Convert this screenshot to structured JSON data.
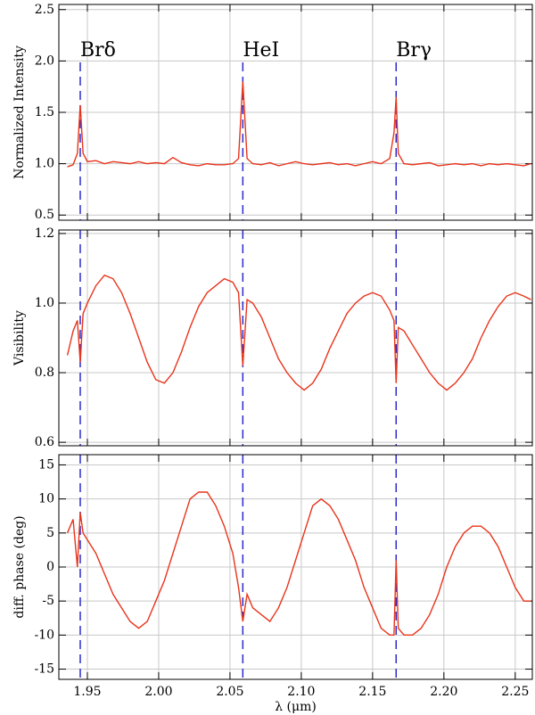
{
  "chart_data": [
    {
      "type": "line",
      "ylabel": "Normalized Intensity",
      "xlim": [
        1.93,
        2.262
      ],
      "ylim": [
        0.45,
        2.55
      ],
      "yticks": [
        {
          "value": 0.5,
          "label": "0.5"
        },
        {
          "value": 1,
          "label": "1.0"
        },
        {
          "value": 1.5,
          "label": "1.5"
        },
        {
          "value": 2,
          "label": "2.0"
        },
        {
          "value": 2.5,
          "label": "2.5"
        }
      ],
      "grid": true,
      "annotations": [
        {
          "text": "Brδ",
          "x": 1.945
        },
        {
          "text": "HeI",
          "x": 2.059
        },
        {
          "text": "Brγ",
          "x": 2.1665
        }
      ],
      "annotation_color": "#2a2acc",
      "x": [
        1.936,
        1.94,
        1.943,
        1.945,
        1.947,
        1.95,
        1.956,
        1.962,
        1.968,
        1.974,
        1.98,
        1.986,
        1.992,
        1.998,
        2.004,
        2.01,
        2.016,
        2.022,
        2.028,
        2.034,
        2.04,
        2.046,
        2.052,
        2.056,
        2.059,
        2.062,
        2.066,
        2.072,
        2.078,
        2.084,
        2.09,
        2.096,
        2.102,
        2.108,
        2.114,
        2.12,
        2.126,
        2.132,
        2.138,
        2.144,
        2.15,
        2.156,
        2.162,
        2.165,
        2.1665,
        2.168,
        2.172,
        2.178,
        2.184,
        2.19,
        2.196,
        2.202,
        2.208,
        2.214,
        2.22,
        2.226,
        2.232,
        2.238,
        2.244,
        2.25,
        2.256,
        2.261
      ],
      "series": [
        {
          "color": "#e8341c",
          "values": [
            0.97,
            0.99,
            1.1,
            1.57,
            1.1,
            1.02,
            1.03,
            1.0,
            1.02,
            1.01,
            1.0,
            1.02,
            1.0,
            1.01,
            1.0,
            1.06,
            1.01,
            0.99,
            0.98,
            1.0,
            0.99,
            0.99,
            1.0,
            1.05,
            1.8,
            1.05,
            1.0,
            0.99,
            1.01,
            0.98,
            1.0,
            1.02,
            1.0,
            0.99,
            1.0,
            1.01,
            0.99,
            1.0,
            0.98,
            1.0,
            1.02,
            1.0,
            1.05,
            1.3,
            1.65,
            1.1,
            1.0,
            0.99,
            1.0,
            1.01,
            0.98,
            0.99,
            1.0,
            0.99,
            1.0,
            0.98,
            1.0,
            0.99,
            1.0,
            0.99,
            0.98,
            1.0
          ]
        }
      ]
    },
    {
      "type": "line",
      "ylabel": "Visibility",
      "xlim": [
        1.93,
        2.262
      ],
      "ylim": [
        0.59,
        1.21
      ],
      "yticks": [
        {
          "value": 0.6,
          "label": "0.6"
        },
        {
          "value": 0.8,
          "label": "0.8"
        },
        {
          "value": 1,
          "label": "1.0"
        },
        {
          "value": 1.2,
          "label": "1.2"
        }
      ],
      "grid": true,
      "x": [
        1.936,
        1.94,
        1.943,
        1.945,
        1.947,
        1.95,
        1.956,
        1.962,
        1.968,
        1.974,
        1.98,
        1.986,
        1.992,
        1.998,
        2.004,
        2.01,
        2.016,
        2.022,
        2.028,
        2.034,
        2.04,
        2.046,
        2.052,
        2.056,
        2.059,
        2.062,
        2.066,
        2.072,
        2.078,
        2.084,
        2.09,
        2.096,
        2.102,
        2.108,
        2.114,
        2.12,
        2.126,
        2.132,
        2.138,
        2.144,
        2.15,
        2.156,
        2.162,
        2.165,
        2.1665,
        2.168,
        2.172,
        2.178,
        2.184,
        2.19,
        2.196,
        2.202,
        2.208,
        2.214,
        2.22,
        2.226,
        2.232,
        2.238,
        2.244,
        2.25,
        2.256,
        2.261
      ],
      "series": [
        {
          "color": "#e8341c",
          "values": [
            0.85,
            0.92,
            0.95,
            0.83,
            0.97,
            1.0,
            1.05,
            1.08,
            1.07,
            1.03,
            0.97,
            0.9,
            0.83,
            0.78,
            0.77,
            0.8,
            0.86,
            0.93,
            0.99,
            1.03,
            1.05,
            1.07,
            1.06,
            1.03,
            0.82,
            1.01,
            1.0,
            0.96,
            0.9,
            0.84,
            0.8,
            0.77,
            0.75,
            0.77,
            0.81,
            0.87,
            0.92,
            0.97,
            1.0,
            1.02,
            1.03,
            1.02,
            0.98,
            0.95,
            0.77,
            0.93,
            0.92,
            0.88,
            0.84,
            0.8,
            0.77,
            0.75,
            0.77,
            0.8,
            0.84,
            0.9,
            0.95,
            0.99,
            1.02,
            1.03,
            1.02,
            1.01
          ]
        }
      ]
    },
    {
      "type": "line",
      "ylabel": "diff. phase (deg)",
      "xlabel": "λ (μm)",
      "xlim": [
        1.93,
        2.262
      ],
      "ylim": [
        -16.5,
        16.5
      ],
      "xticks": [
        1.95,
        {
          "value": 2,
          "label": "2.00"
        },
        2.05,
        {
          "value": 2.1,
          "label": "2.10"
        },
        2.15,
        {
          "value": 2.2,
          "label": "2.20"
        },
        2.25
      ],
      "yticks": [
        -15,
        -10,
        -5,
        0,
        5,
        10,
        15
      ],
      "grid": true,
      "x": [
        1.936,
        1.94,
        1.943,
        1.945,
        1.947,
        1.95,
        1.956,
        1.962,
        1.968,
        1.974,
        1.98,
        1.986,
        1.992,
        1.998,
        2.004,
        2.01,
        2.016,
        2.022,
        2.028,
        2.034,
        2.04,
        2.046,
        2.052,
        2.056,
        2.059,
        2.062,
        2.066,
        2.072,
        2.078,
        2.084,
        2.09,
        2.096,
        2.102,
        2.108,
        2.114,
        2.12,
        2.126,
        2.132,
        2.138,
        2.144,
        2.15,
        2.156,
        2.162,
        2.165,
        2.1665,
        2.168,
        2.172,
        2.178,
        2.184,
        2.19,
        2.196,
        2.202,
        2.208,
        2.214,
        2.22,
        2.226,
        2.232,
        2.238,
        2.244,
        2.25,
        2.256,
        2.261
      ],
      "series": [
        {
          "color": "#e8341c",
          "values": [
            5,
            7,
            0,
            8,
            5,
            4,
            2,
            -1,
            -4,
            -6,
            -8,
            -9,
            -8,
            -5,
            -2,
            2,
            6,
            10,
            11,
            11,
            9,
            6,
            2,
            -3,
            -8,
            -4,
            -6,
            -7,
            -8,
            -6,
            -3,
            1,
            5,
            9,
            10,
            9,
            7,
            4,
            1,
            -3,
            -6,
            -9,
            -10,
            -10,
            1,
            -9,
            -10,
            -10,
            -9,
            -7,
            -4,
            0,
            3,
            5,
            6,
            6,
            5,
            3,
            0,
            -3,
            -5,
            -5
          ]
        }
      ]
    }
  ]
}
